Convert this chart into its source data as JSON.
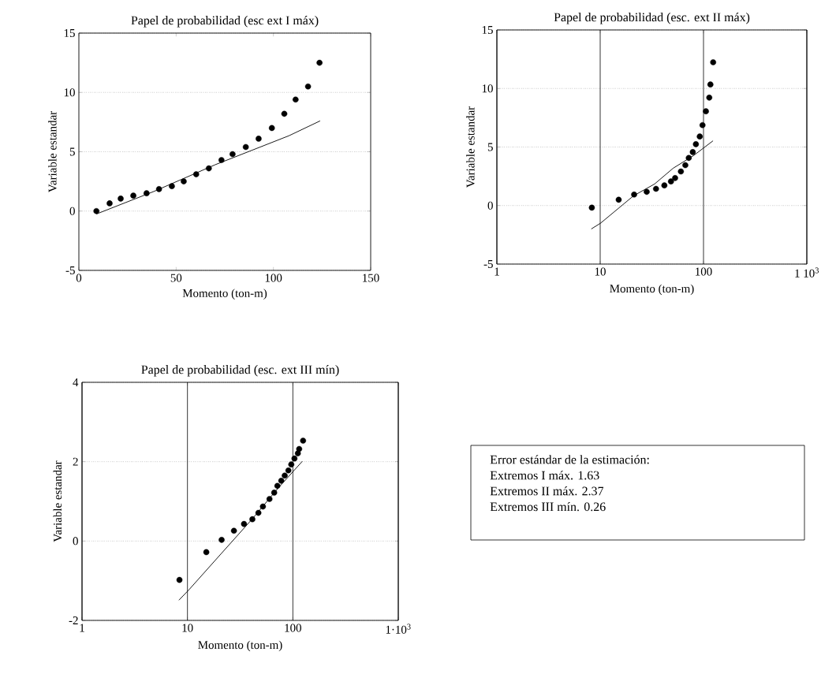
{
  "chart_data": [
    {
      "type": "scatter",
      "title": "Papel de probabilidad (esc ext I máx)",
      "xlabel": "Momento (ton-m)",
      "ylabel": "Variable estandar",
      "xlim": [
        0,
        150
      ],
      "xticks": [
        0,
        50,
        100,
        150
      ],
      "ylim": [
        -5,
        15
      ],
      "yticks": [
        -5,
        0,
        5,
        10,
        15
      ],
      "grid": "y",
      "series": [
        {
          "marker": "circle",
          "color": "#000000",
          "x": [
            9,
            15.8,
            21.5,
            28,
            34.8,
            41.2,
            47.8,
            53.9,
            60.3,
            66.8,
            73.3,
            79,
            85.8,
            92.4,
            99.2,
            105.6,
            111.4,
            117.8,
            123.7
          ],
          "values": [
            0,
            0.65,
            1.05,
            1.3,
            1.5,
            1.85,
            2.1,
            2.5,
            3.1,
            3.6,
            4.3,
            4.8,
            5.4,
            6.1,
            7.0,
            8.2,
            9.4,
            10.5,
            12.5
          ]
        },
        {
          "type": "line",
          "marker": "none",
          "color": "#000000",
          "x": [
            9,
            38.5,
            70,
            108,
            124
          ],
          "values": [
            -0.25,
            1.65,
            3.9,
            6.35,
            7.6
          ]
        }
      ]
    },
    {
      "type": "scatter",
      "title": "Papel de probabilidad (esc. ext II máx)",
      "xlabel": "Momento (ton-m)",
      "ylabel": "Variable estandar",
      "log": "x",
      "xlim": [
        1,
        1000
      ],
      "xticks": [
        1,
        10,
        100,
        {
          "value": 1000,
          "label": "1 10$^{3}$"
        }
      ],
      "ylim": [
        -5,
        15
      ],
      "yticks": [
        -5,
        0,
        5,
        10,
        15
      ],
      "grid": true,
      "series": [
        {
          "marker": "circle",
          "color": "#000000",
          "x": [
            8.3,
            15.1,
            21.3,
            28.2,
            34.7,
            41.8,
            48.4,
            53.1,
            60.4,
            66.7,
            72,
            78.7,
            84.4,
            92,
            97.8,
            105.5,
            113.7,
            116.6,
            124
          ],
          "values": [
            -0.18,
            0.5,
            0.94,
            1.17,
            1.43,
            1.72,
            2.06,
            2.35,
            2.91,
            3.45,
            4.07,
            4.57,
            5.24,
            5.9,
            6.87,
            8.05,
            9.22,
            10.34,
            12.24
          ]
        },
        {
          "type": "line",
          "marker": "none",
          "color": "#000000",
          "x": [
            8.2,
            10.1,
            21,
            33.6,
            50.7,
            81,
            123.6
          ],
          "values": [
            -2.0,
            -1.5,
            0.83,
            1.84,
            3.18,
            4.3,
            5.53
          ]
        }
      ]
    },
    {
      "type": "scatter",
      "title": "Papel de probabilidad (esc. ext III mín)",
      "xlabel": "Momento (ton-m)",
      "ylabel": "Variable estandar",
      "log": "x",
      "xlim": [
        1,
        1000
      ],
      "xticks": [
        1,
        10,
        100,
        {
          "value": 1000,
          "label": "1·10$^{3}$"
        }
      ],
      "ylim": [
        -2,
        4
      ],
      "yticks": [
        -2,
        0,
        2,
        4
      ],
      "grid": true,
      "series": [
        {
          "marker": "circle",
          "color": "#000000",
          "x": [
            8.4,
            15.1,
            21.1,
            27.6,
            34.4,
            41.3,
            47.1,
            52,
            60,
            66.5,
            71.3,
            77.6,
            83.7,
            90.7,
            96.6,
            103.5,
            111.5,
            114.8,
            125
          ],
          "values": [
            -0.98,
            -0.28,
            0.03,
            0.26,
            0.43,
            0.55,
            0.71,
            0.87,
            1.06,
            1.22,
            1.39,
            1.52,
            1.65,
            1.78,
            1.93,
            2.08,
            2.21,
            2.32,
            2.53
          ]
        },
        {
          "type": "line",
          "marker": "none",
          "color": "#000000",
          "x": [
            8.3,
            10.4,
            20.7,
            41.3,
            73.3,
            123
          ],
          "values": [
            -1.49,
            -1.22,
            -0.33,
            0.56,
            1.35,
            2.01
          ]
        }
      ]
    },
    {
      "type": "other",
      "title": "Error estándar de la estimación:",
      "annotations": [
        "Extremos I máx.  1.63",
        "Extremos II máx.  2.37",
        "Extremos III mín.  0.26"
      ]
    }
  ]
}
